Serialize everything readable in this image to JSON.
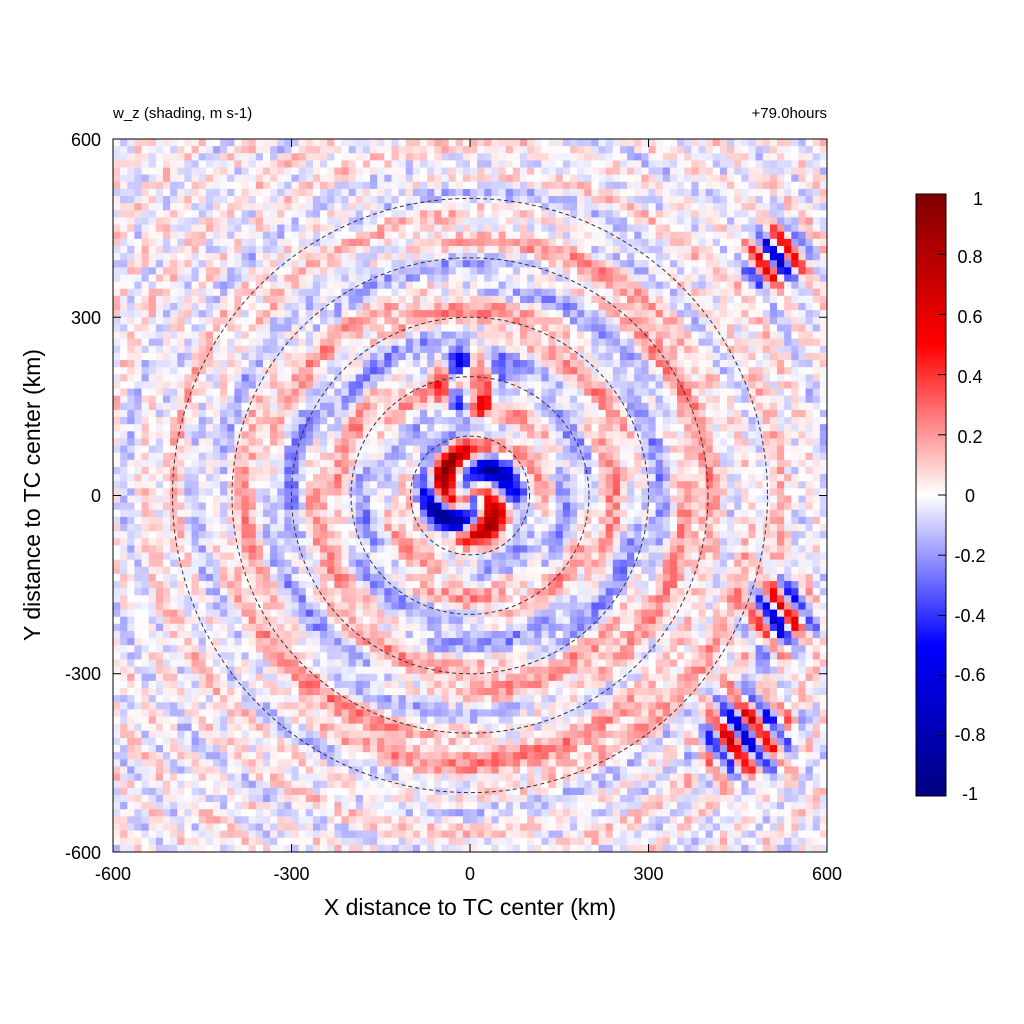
{
  "chart_data": {
    "type": "heatmap",
    "title_left": "w_z (shading, m s-1)",
    "title_right": "+79.0hours",
    "xlabel": "X distance to TC center (km)",
    "ylabel": "Y distance to TC center (km)",
    "xlim": [
      -600,
      600
    ],
    "ylim": [
      -600,
      600
    ],
    "xticks": [
      "-600",
      "-300",
      "0",
      "300",
      "600"
    ],
    "yticks": [
      "600",
      "300",
      "0",
      "-300",
      "-600"
    ],
    "range_rings_km": [
      100,
      200,
      300,
      400,
      500
    ],
    "ring_style": "dashed",
    "colorbar": {
      "min": -1,
      "max": 1,
      "colormap": "blue-white-red",
      "colors": [
        "#00007f",
        "#0000ff",
        "#ffffff",
        "#ff0000",
        "#7f0000"
      ],
      "tick_labels": [
        "1",
        "0.8",
        "0.6",
        "0.4",
        "0.2",
        "0",
        "-0.2",
        "-0.4",
        "-0.6",
        "-0.8",
        "-1"
      ]
    }
  }
}
